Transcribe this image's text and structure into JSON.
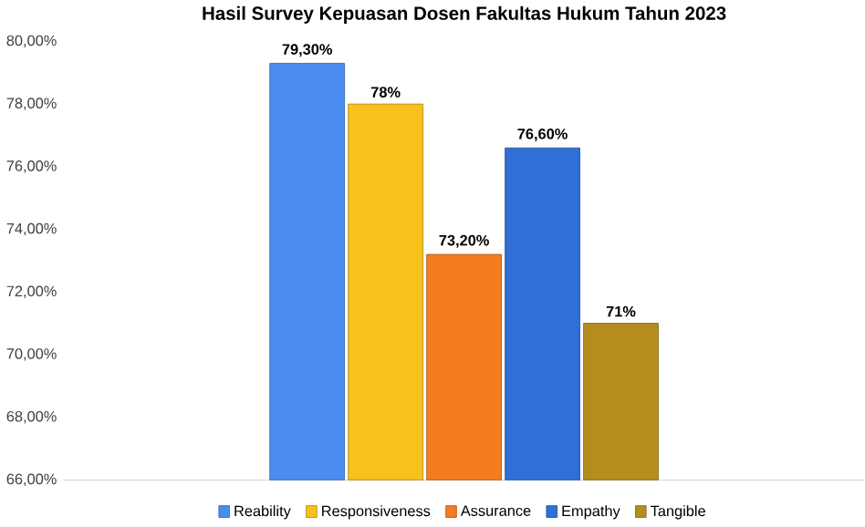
{
  "chart_data": {
    "type": "bar",
    "title": "Hasil Survey Kepuasan Dosen Fakultas Hukum Tahun 2023",
    "categories": [
      null
    ],
    "ylim": [
      66,
      80
    ],
    "yticks": [
      {
        "value": 66,
        "label": "66,00%"
      },
      {
        "value": 68,
        "label": "68,00%"
      },
      {
        "value": 70,
        "label": "70,00%"
      },
      {
        "value": 72,
        "label": "72,00%"
      },
      {
        "value": 74,
        "label": "74,00%"
      },
      {
        "value": 76,
        "label": "76,00%"
      },
      {
        "value": 78,
        "label": "78,00%"
      },
      {
        "value": 80,
        "label": "80,00%"
      }
    ],
    "legend": "bottom",
    "series": [
      {
        "name": "Reability",
        "color": "#4a8cf0",
        "values": [
          79.3
        ],
        "value_labels": [
          "79,30%"
        ]
      },
      {
        "name": "Responsiveness",
        "color": "#f7c21b",
        "values": [
          78
        ],
        "value_labels": [
          "78%"
        ]
      },
      {
        "name": "Assurance",
        "color": "#f57c1f",
        "values": [
          73.2
        ],
        "value_labels": [
          "73,20%"
        ]
      },
      {
        "name": "Empathy",
        "color": "#2f6fd6",
        "values": [
          76.6
        ],
        "value_labels": [
          "76,60%"
        ]
      },
      {
        "name": "Tangible",
        "color": "#b58d1e",
        "values": [
          71
        ],
        "value_labels": [
          "71%"
        ]
      }
    ]
  }
}
